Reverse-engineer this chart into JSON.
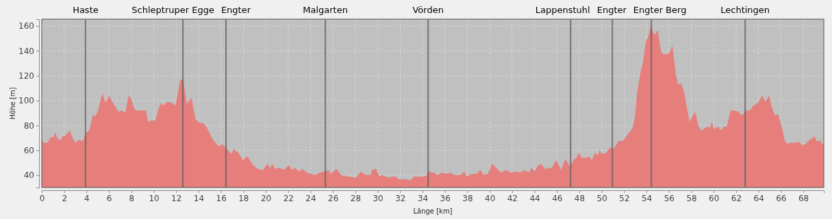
{
  "chart_data": {
    "type": "area",
    "xlabel": "Länge [km]",
    "ylabel": "Höhe [m]",
    "xlim": [
      0,
      69.83
    ],
    "ylim": [
      30,
      165.5
    ],
    "xticks": [
      0,
      2,
      4,
      6,
      8,
      10,
      12,
      14,
      16,
      18,
      20,
      22,
      24,
      26,
      28,
      30,
      32,
      34,
      36,
      38,
      40,
      42,
      44,
      46,
      48,
      50,
      52,
      54,
      56,
      58,
      60,
      62,
      64,
      66,
      68
    ],
    "yticks": [
      40,
      60,
      80,
      100,
      120,
      140,
      160
    ],
    "grid": true,
    "series": [
      {
        "color": "#e87a78",
        "x": [
          0,
          0.16,
          0.51,
          0.82,
          0.98,
          1.22,
          1.43,
          1.69,
          1.84,
          2.14,
          2.49,
          2.76,
          3.0,
          3.22,
          3.47,
          3.67,
          3.94,
          4.24,
          4.59,
          4.8,
          5.06,
          5.41,
          5.71,
          6.02,
          6.43,
          6.84,
          7.14,
          7.45,
          7.76,
          7.96,
          8.27,
          8.57,
          8.88,
          9.29,
          9.49,
          9.8,
          10.14,
          10.41,
          10.65,
          10.86,
          11.22,
          11.63,
          11.94,
          12.35,
          12.61,
          12.96,
          13.1,
          13.37,
          13.73,
          14.08,
          14.39,
          14.69,
          15.31,
          15.82,
          16.12,
          16.53,
          16.94,
          17.14,
          17.55,
          17.96,
          18.37,
          18.88,
          19.29,
          19.8,
          20.1,
          20.41,
          20.61,
          20.82,
          21.22,
          21.63,
          22.04,
          22.35,
          22.61,
          22.96,
          23.27,
          23.67,
          24.04,
          24.41,
          24.81,
          25.32,
          25.59,
          25.83,
          26.3,
          26.74,
          27.25,
          28.07,
          28.51,
          28.88,
          29.39,
          29.49,
          29.85,
          30.14,
          30.4,
          30.91,
          31.52,
          31.93,
          32.54,
          32.94,
          33.25,
          33.96,
          34.37,
          34.53,
          34.98,
          35.38,
          35.69,
          36.2,
          36.56,
          36.8,
          37.41,
          37.72,
          37.92,
          38.43,
          38.84,
          39.15,
          39.45,
          39.85,
          40.22,
          40.57,
          40.97,
          41.48,
          41.89,
          42.4,
          42.7,
          43.11,
          43.51,
          43.72,
          44.02,
          44.33,
          44.63,
          44.93,
          45.54,
          45.95,
          46.36,
          46.76,
          47.17,
          47.54,
          47.67,
          47.98,
          48.18,
          48.69,
          48.89,
          49.1,
          49.4,
          49.67,
          49.81,
          50.01,
          50.42,
          50.72,
          51.13,
          51.54,
          51.84,
          52.35,
          52.76,
          52.96,
          53.16,
          53.47,
          53.67,
          53.93,
          54.14,
          54.38,
          54.59,
          54.79,
          54.99,
          55.3,
          55.6,
          56.01,
          56.31,
          56.62,
          56.82,
          57.07,
          57.33,
          57.84,
          58.35,
          58.65,
          58.89,
          59.46,
          59.67,
          59.83,
          60.03,
          60.38,
          60.68,
          60.89,
          61.19,
          61.5,
          61.8,
          62.21,
          62.51,
          62.92,
          63.22,
          63.53,
          63.93,
          64.34,
          64.61,
          64.95,
          65.15,
          65.46,
          65.76,
          66.07,
          66.37,
          66.58,
          66.78,
          67.39,
          67.59,
          67.9,
          68.2,
          68.51,
          69.02,
          69.18,
          69.52,
          69.69,
          69.83
        ],
        "values": [
          69,
          66,
          66,
          71,
          70,
          74,
          69,
          68,
          71,
          72,
          76,
          70,
          66,
          68,
          68,
          67,
          74,
          76,
          89,
          87,
          93,
          106,
          98,
          104,
          97,
          91,
          92,
          90,
          104,
          102,
          93,
          92,
          92,
          92,
          83,
          84,
          84,
          93,
          98,
          96,
          99,
          98,
          96,
          116,
          118,
          97,
          99,
          102,
          85,
          82,
          82,
          79,
          68,
          63,
          65,
          61,
          57,
          61,
          58,
          52,
          55,
          48,
          45,
          44,
          49,
          46,
          49,
          45,
          46,
          44,
          48,
          44,
          46,
          43,
          45,
          42,
          41,
          40,
          42,
          43,
          44,
          41,
          45,
          40,
          39,
          38,
          43,
          40,
          40,
          44,
          45,
          39,
          40,
          38,
          39,
          36.5,
          36.7,
          35.8,
          38.9,
          38.6,
          39.8,
          43,
          42,
          40,
          42,
          41,
          42,
          40,
          40,
          43,
          39,
          41,
          41,
          44,
          40,
          41,
          49,
          46,
          42,
          44,
          42,
          43,
          42,
          44,
          42,
          46,
          43,
          48,
          49,
          45,
          46,
          52,
          44,
          53,
          47,
          53,
          53,
          58,
          54,
          54,
          55,
          52,
          58,
          56,
          60,
          57,
          58,
          62,
          62,
          68,
          67,
          73,
          78,
          86,
          106,
          123,
          130,
          147,
          151,
          160,
          155,
          153,
          157,
          139,
          137,
          138,
          144,
          121,
          113,
          114,
          108,
          83,
          91,
          79,
          76,
          79,
          78,
          83,
          77,
          79,
          76,
          79,
          79,
          92,
          92,
          91,
          88,
          92,
          92,
          96,
          98,
          104,
          99,
          104,
          96,
          88,
          89,
          79,
          67,
          65,
          66,
          66,
          67,
          64,
          65,
          68,
          71,
          67,
          68,
          65,
          65
        ]
      }
    ],
    "ref_lines": [
      {
        "axis": "x",
        "value": 3.91,
        "label": "Haste"
      },
      {
        "axis": "x",
        "value": 12.6,
        "label": "Schleptruper Egge"
      },
      {
        "axis": "x",
        "value": 16.45,
        "label": "Engter"
      },
      {
        "axis": "x",
        "value": 25.32,
        "label": "Malgarten"
      },
      {
        "axis": "x",
        "value": 34.5,
        "label": "Vörden"
      },
      {
        "axis": "x",
        "value": 47.22,
        "label": "Lappenstuhl"
      },
      {
        "axis": "x",
        "value": 50.95,
        "label": "Engter"
      },
      {
        "axis": "x",
        "value": 54.43,
        "label": "Engter Berg"
      },
      {
        "axis": "x",
        "value": 62.81,
        "label": "Lechtingen"
      }
    ]
  }
}
